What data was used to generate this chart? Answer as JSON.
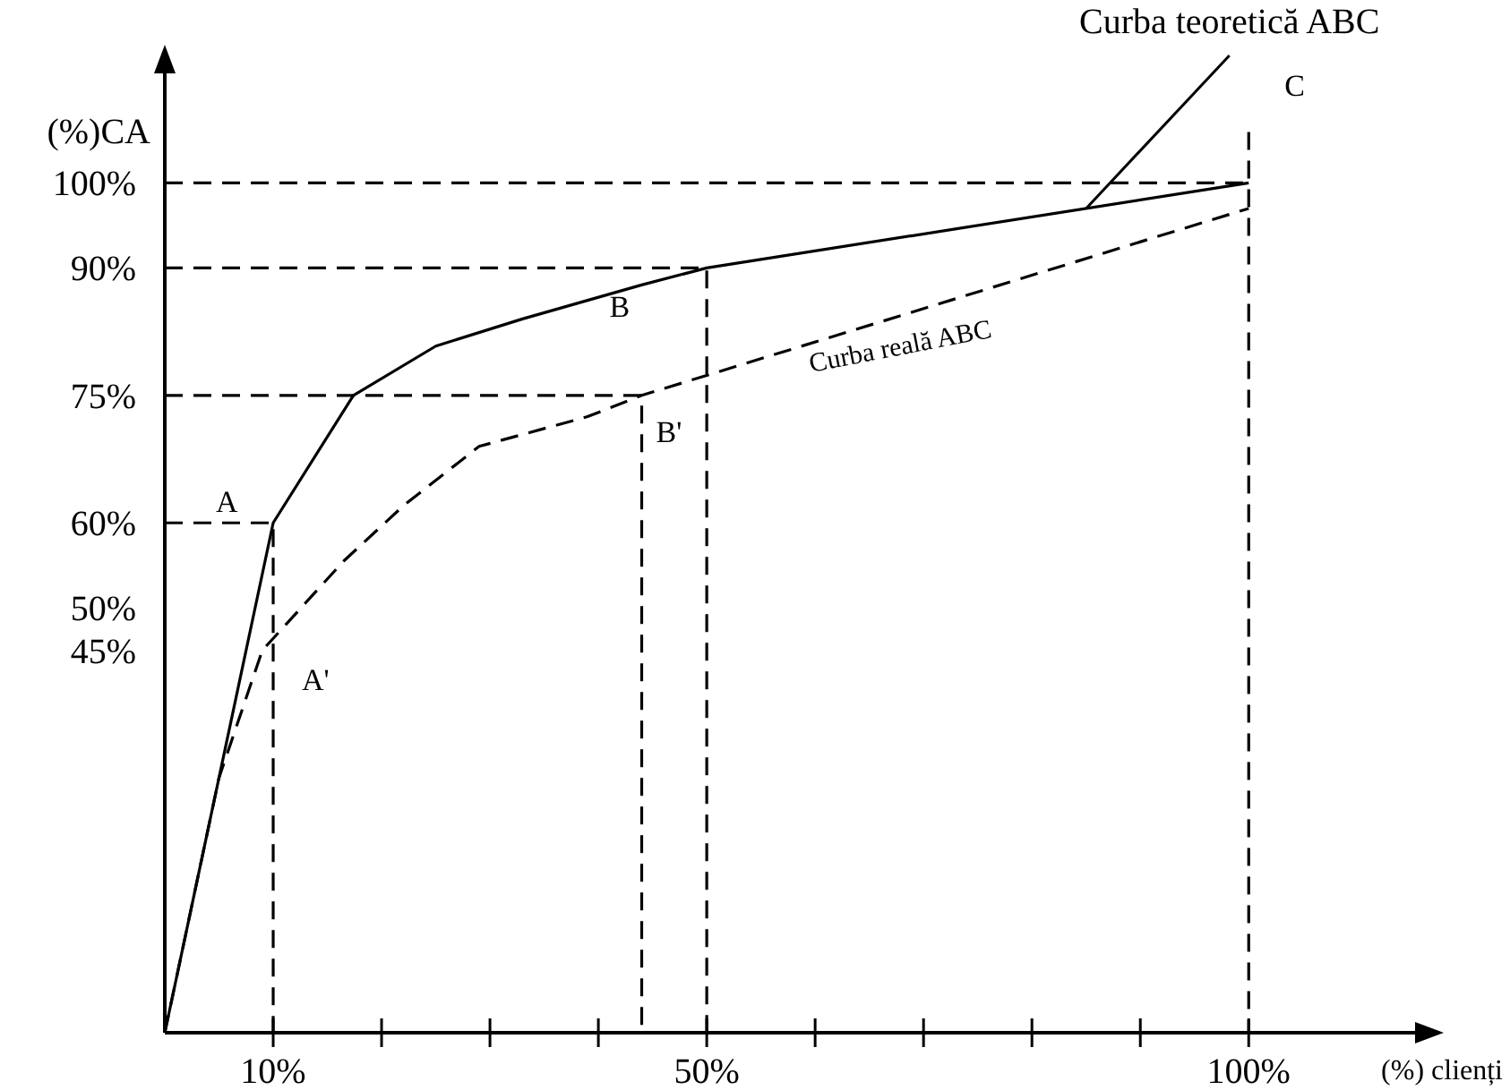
{
  "chart_data": {
    "type": "line",
    "xlabel": "(%) clienți",
    "ylabel": "(%)CA",
    "xlim": [
      0,
      117
    ],
    "ylim": [
      0,
      115
    ],
    "xticks": [
      {
        "value": 10,
        "label": "10%"
      },
      {
        "value": 20,
        "label": null
      },
      {
        "value": 30,
        "label": null
      },
      {
        "value": 40,
        "label": null
      },
      {
        "value": 50,
        "label": "50%"
      },
      {
        "value": 60,
        "label": null
      },
      {
        "value": 70,
        "label": null
      },
      {
        "value": 80,
        "label": null
      },
      {
        "value": 90,
        "label": null
      },
      {
        "value": 100,
        "label": "100%"
      }
    ],
    "yticks": [
      {
        "value": 45,
        "label": "45%"
      },
      {
        "value": 50,
        "label": "50%"
      },
      {
        "value": 60,
        "label": "60%"
      },
      {
        "value": 75,
        "label": "75%"
      },
      {
        "value": 90,
        "label": "90%"
      },
      {
        "value": 100,
        "label": "100%"
      }
    ],
    "grid": false,
    "legend": false,
    "marker": "none",
    "series": [
      {
        "name": "Curba teoretică ABC",
        "color": "#000000",
        "line_style": "solid",
        "x": [
          0,
          10,
          17.4,
          25,
          33,
          44,
          50,
          100
        ],
        "values": [
          0,
          60,
          75,
          80.8,
          84,
          88,
          90,
          100
        ]
      },
      {
        "name": "Curba reală ABC",
        "color": "#000000",
        "line_style": "dashed",
        "x": [
          0,
          5,
          9,
          16.5,
          22,
          29,
          39,
          44,
          100
        ],
        "values": [
          0,
          30,
          45,
          55.5,
          62,
          69,
          72.5,
          75,
          97
        ]
      },
      {
        "color": "#000000",
        "line_style": "dashed",
        "x": [
          0,
          10,
          10
        ],
        "values": [
          60,
          60,
          0
        ]
      },
      {
        "color": "#000000",
        "line_style": "dashed",
        "x": [
          0,
          44,
          44
        ],
        "values": [
          75,
          75,
          0
        ]
      },
      {
        "color": "#000000",
        "line_style": "dashed",
        "x": [
          0,
          50,
          50
        ],
        "values": [
          90,
          90,
          0
        ]
      },
      {
        "color": "#000000",
        "line_style": "dashed",
        "x": [
          0,
          100
        ],
        "values": [
          100,
          100
        ]
      },
      {
        "color": "#000000",
        "line_style": "dashed",
        "x": [
          100,
          100
        ],
        "values": [
          106,
          0
        ]
      }
    ],
    "annotations": [
      {
        "text": "A",
        "x": 10,
        "y": 60
      },
      {
        "text": "A'",
        "x": 9,
        "y": 45
      },
      {
        "text": "B",
        "x": 44,
        "y": 88
      },
      {
        "text": "B'",
        "x": 44,
        "y": 75
      },
      {
        "text": "C",
        "x": 100,
        "y": 106
      }
    ]
  }
}
